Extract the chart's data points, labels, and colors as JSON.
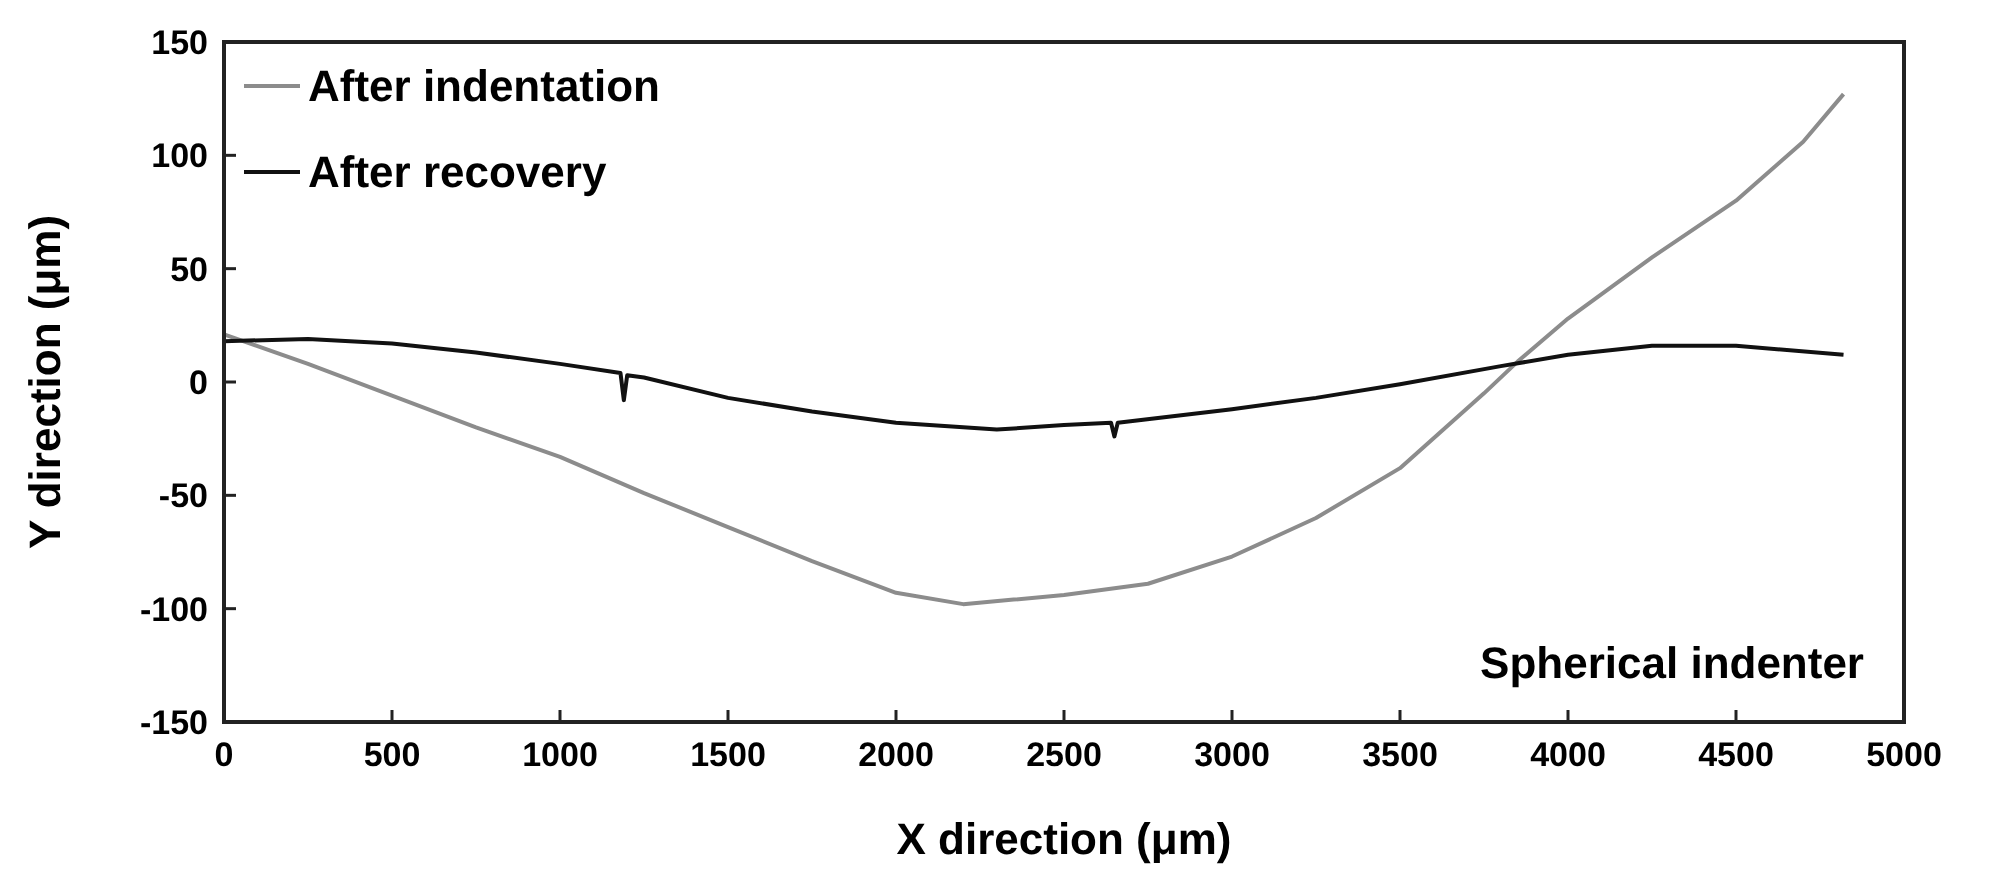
{
  "chart_data": {
    "type": "line",
    "xlabel": "X direction (μm)",
    "ylabel": "Y direction (μm)",
    "annotations": [
      "Spherical indenter"
    ],
    "xlim": [
      0,
      5000
    ],
    "xticks": [
      0,
      500,
      1000,
      1500,
      2000,
      2500,
      3000,
      3500,
      4000,
      4500,
      5000
    ],
    "ylim": [
      -150,
      150
    ],
    "yticks": [
      -150,
      -100,
      -50,
      0,
      50,
      100,
      150
    ],
    "grid": false,
    "legend": "top left",
    "marker": "none",
    "line_style": "solid",
    "series": [
      {
        "name": "After indentation",
        "color": "#8c8c8c",
        "x": [
          0,
          250,
          500,
          750,
          1000,
          1250,
          1500,
          1750,
          2000,
          2200,
          2350,
          2500,
          2750,
          3000,
          3250,
          3500,
          3750,
          3850,
          4000,
          4250,
          4500,
          4700,
          4820
        ],
        "values": [
          21,
          8,
          -6,
          -20,
          -33,
          -49,
          -64,
          -79,
          -93,
          -98,
          -96,
          -94,
          -89,
          -77,
          -60,
          -38,
          -5,
          9,
          28,
          55,
          80,
          106,
          127
        ]
      },
      {
        "name": "After recovery",
        "color": "#111111",
        "x": [
          0,
          250,
          500,
          750,
          1000,
          1180,
          1190,
          1200,
          1250,
          1500,
          1750,
          2000,
          2300,
          2500,
          2640,
          2650,
          2660,
          3000,
          3250,
          3500,
          3800,
          4000,
          4250,
          4500,
          4820
        ],
        "values": [
          18,
          19,
          17,
          13,
          8,
          4,
          -8,
          3,
          2,
          -7,
          -13,
          -18,
          -21,
          -19,
          -18,
          -24,
          -18,
          -12,
          -7,
          -1,
          7,
          12,
          16,
          16,
          12
        ]
      }
    ]
  }
}
